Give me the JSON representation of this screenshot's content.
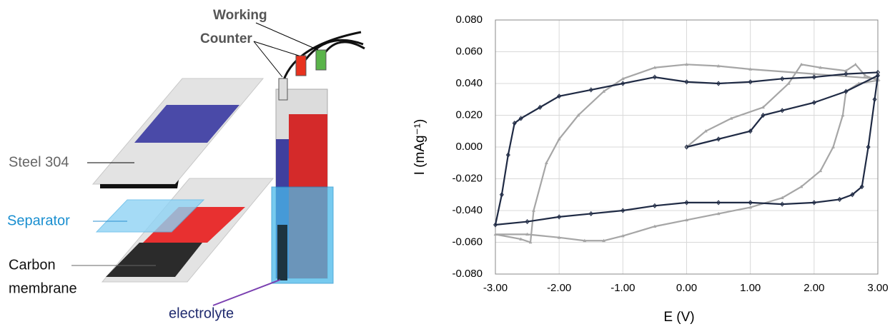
{
  "diagram": {
    "working": "Working",
    "counter": "Counter",
    "steel": "Steel 304",
    "separator": "Separator",
    "carbon_membrane": [
      "Carbon",
      "membrane"
    ],
    "electrolyte": "electrolyte"
  },
  "chart_data": {
    "type": "line",
    "xlabel": "E (V)",
    "ylabel": "I (mAg⁻¹)",
    "xlim": [
      -3,
      3
    ],
    "xticks": [
      {
        "value": -3,
        "label": "-3.00"
      },
      {
        "value": -2,
        "label": "-2.00"
      },
      {
        "value": -1,
        "label": "-1.00"
      },
      {
        "value": 0,
        "label": "0.00"
      },
      {
        "value": 1,
        "label": "1.00"
      },
      {
        "value": 2,
        "label": "2.00"
      },
      {
        "value": 3,
        "label": "3.00"
      }
    ],
    "ylim": [
      -0.08,
      0.08
    ],
    "yticks": [
      {
        "value": -0.08,
        "label": "-0.080"
      },
      {
        "value": -0.06,
        "label": "-0.060"
      },
      {
        "value": -0.04,
        "label": "-0.040"
      },
      {
        "value": -0.02,
        "label": "-0.020"
      },
      {
        "value": 0,
        "label": "0.000"
      },
      {
        "value": 0.02,
        "label": "0.020"
      },
      {
        "value": 0.04,
        "label": "0.040"
      },
      {
        "value": 0.06,
        "label": "0.060"
      },
      {
        "value": 0.08,
        "label": "0.080"
      }
    ],
    "grid": true,
    "series": [
      {
        "color": "#a6a6a6",
        "marker": "triangle",
        "x": [
          0,
          0.3,
          0.7,
          1.2,
          1.6,
          1.8,
          2.1,
          2.5,
          2.65,
          2.8,
          3,
          2.7,
          2.5,
          2.45,
          2.3,
          2.1,
          1.8,
          1.5,
          1,
          0.5,
          0,
          -0.5,
          -1,
          -1.3,
          -1.6,
          -2,
          -2.5,
          -3,
          -2.6,
          -2.45,
          -2.4,
          -2.2,
          -2,
          -1.7,
          -1.3,
          -1,
          -0.5,
          0,
          0.5,
          1,
          2,
          3
        ],
        "values": [
          0,
          0.01,
          0.018,
          0.025,
          0.04,
          0.052,
          0.05,
          0.048,
          0.052,
          0.045,
          0.042,
          0.04,
          0.035,
          0.02,
          0,
          -0.015,
          -0.025,
          -0.032,
          -0.038,
          -0.042,
          -0.046,
          -0.05,
          -0.056,
          -0.059,
          -0.059,
          -0.057,
          -0.055,
          -0.055,
          -0.058,
          -0.06,
          -0.04,
          -0.01,
          0.005,
          0.02,
          0.035,
          0.043,
          0.05,
          0.052,
          0.051,
          0.049,
          0.046,
          0.043
        ]
      },
      {
        "color": "#1f2a44",
        "marker": "diamond",
        "x": [
          0,
          0.5,
          1,
          1.2,
          1.5,
          2,
          2.5,
          3,
          2.95,
          2.85,
          2.75,
          2.6,
          2.4,
          2,
          1.5,
          1,
          0.5,
          0,
          -0.5,
          -1,
          -1.5,
          -2,
          -2.5,
          -3,
          -2.9,
          -2.8,
          -2.7,
          -2.6,
          -2.3,
          -2,
          -1.5,
          -1,
          -0.5,
          0,
          0.5,
          1,
          1.5,
          2,
          2.5,
          3
        ],
        "values": [
          0,
          0.005,
          0.01,
          0.02,
          0.023,
          0.028,
          0.035,
          0.045,
          0.03,
          0,
          -0.025,
          -0.03,
          -0.033,
          -0.035,
          -0.036,
          -0.035,
          -0.035,
          -0.035,
          -0.037,
          -0.04,
          -0.042,
          -0.044,
          -0.047,
          -0.049,
          -0.03,
          -0.005,
          0.015,
          0.018,
          0.025,
          0.032,
          0.036,
          0.04,
          0.044,
          0.041,
          0.04,
          0.041,
          0.043,
          0.044,
          0.046,
          0.047
        ]
      }
    ]
  }
}
